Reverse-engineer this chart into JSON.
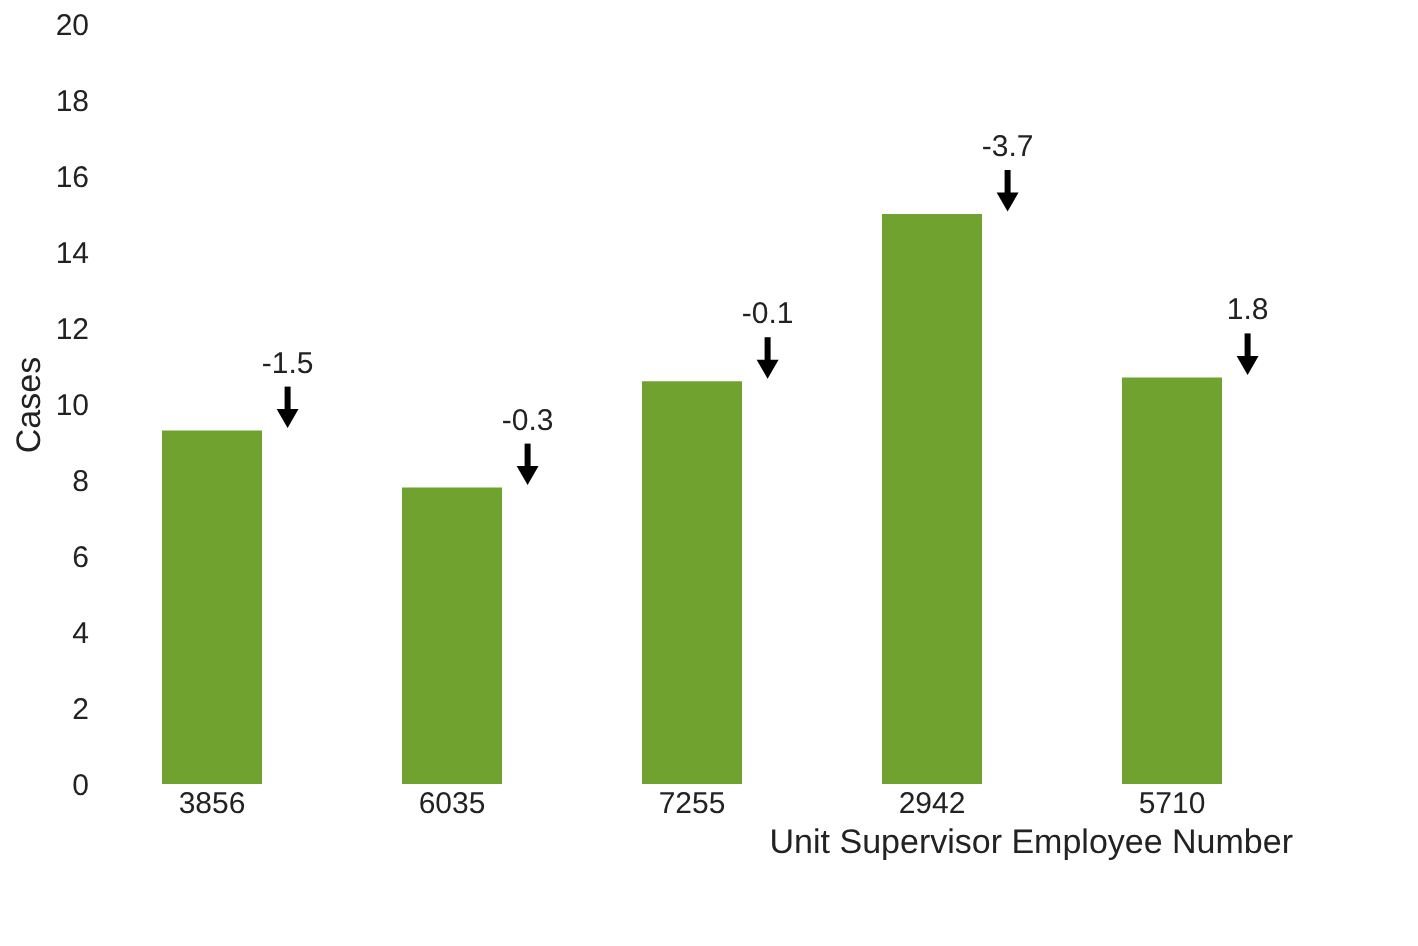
{
  "chart_data": {
    "type": "bar",
    "xlabel": "Unit Supervisor Employee Number",
    "ylabel": "Cases",
    "categories": [
      "3856",
      "6035",
      "7255",
      "2942",
      "5710"
    ],
    "values": [
      9.3,
      7.8,
      10.6,
      15.0,
      10.7
    ],
    "color": "#6fa22e",
    "ylim": [
      0,
      20
    ],
    "yticks": [
      0,
      2,
      4,
      6,
      8,
      10,
      12,
      14,
      16,
      18,
      20
    ],
    "grid": false,
    "annotations": [
      {
        "text": "-1.5",
        "x": "3856",
        "y": 9.3
      },
      {
        "text": "-0.3",
        "x": "6035",
        "y": 7.8
      },
      {
        "text": "-0.1",
        "x": "7255",
        "y": 10.6
      },
      {
        "text": "-3.7",
        "x": "2942",
        "y": 15.0
      },
      {
        "text": "1.8",
        "x": "5710",
        "y": 10.7
      }
    ]
  }
}
